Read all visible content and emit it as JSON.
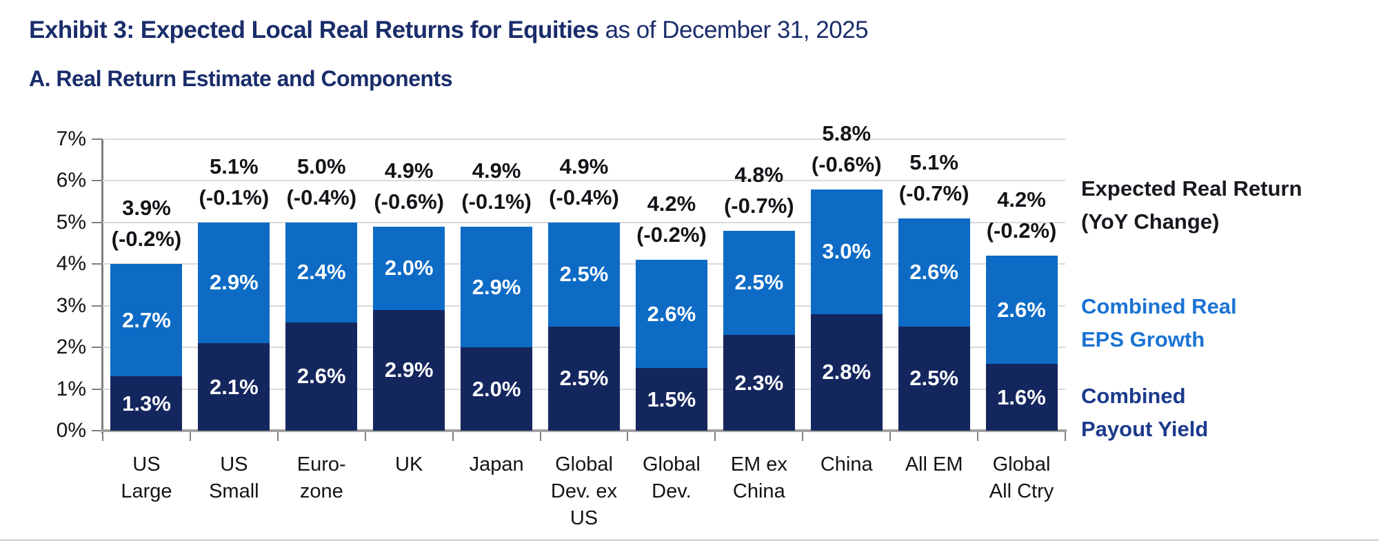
{
  "header": {
    "title_bold": "Exhibit 3: Expected Local Real Returns for Equities",
    "title_suffix": " as of December 31, 2025",
    "subtitle": "A. Real Return Estimate and Components"
  },
  "legend": {
    "return_label": "Expected Real Return\n(YoY Change)",
    "eps_label": "Combined Real\nEPS Growth",
    "payout_label": "Combined\nPayout Yield"
  },
  "colors": {
    "title_navy": "#1A2D6B",
    "eps_blue": "#0D6BC5",
    "payout_navy": "#14265E",
    "legend_return_black": "#17191F",
    "legend_eps_blue": "#1B73D3",
    "legend_payout_navy": "#1B3A8C",
    "gridline_gray": "#D9D9D9",
    "axis_gray": "#7F7F7F",
    "baseline_gray": "#A3A3A3"
  },
  "chart_data": {
    "type": "bar",
    "stacked": true,
    "title": "A. Real Return Estimate and Components",
    "xlabel": "",
    "ylabel": "",
    "ylim": [
      0,
      7
    ],
    "grid": true,
    "legend_position": "right",
    "yticks": [
      "0%",
      "1%",
      "2%",
      "3%",
      "4%",
      "5%",
      "6%",
      "7%"
    ],
    "categories": [
      "US\nLarge",
      "US\nSmall",
      "Euro-\nzone",
      "UK",
      "Japan",
      "Global\nDev. ex\nUS",
      "Global\nDev.",
      "EM ex\nChina",
      "China",
      "All EM",
      "Global\nAll Ctry"
    ],
    "series": [
      {
        "name": "Combined Payout Yield",
        "color": "#14265E",
        "values": [
          1.3,
          2.1,
          2.6,
          2.9,
          2.0,
          2.5,
          1.5,
          2.3,
          2.8,
          2.5,
          1.6
        ]
      },
      {
        "name": "Combined Real EPS Growth",
        "color": "#0D6BC5",
        "values": [
          2.7,
          2.9,
          2.4,
          2.0,
          2.9,
          2.5,
          2.6,
          2.5,
          3.0,
          2.6,
          2.6
        ]
      }
    ],
    "totals": [
      "3.9%",
      "5.1%",
      "5.0%",
      "4.9%",
      "4.9%",
      "4.9%",
      "4.2%",
      "4.8%",
      "5.8%",
      "5.1%",
      "4.2%"
    ],
    "yoy_changes": [
      "(-0.2%)",
      "(-0.1%)",
      "(-0.4%)",
      "(-0.6%)",
      "(-0.1%)",
      "(-0.4%)",
      "(-0.2%)",
      "(-0.7%)",
      "(-0.6%)",
      "(-0.7%)",
      "(-0.2%)"
    ]
  }
}
